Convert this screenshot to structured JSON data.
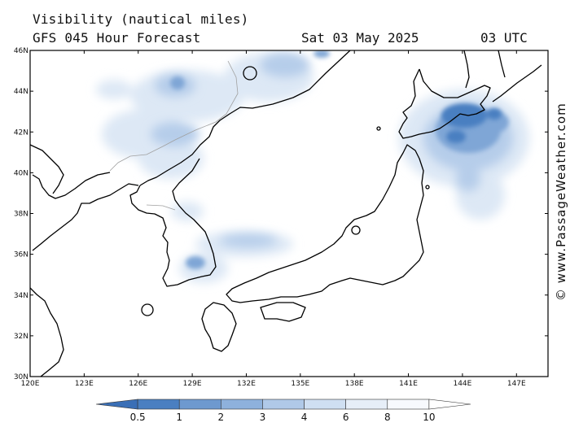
{
  "header": {
    "title": "Visibility (nautical miles)",
    "subtitle": "GFS 045 Hour Forecast",
    "date": "Sat 03 May 2025",
    "time": "03 UTC"
  },
  "axes": {
    "lat_labels": [
      "46N",
      "44N",
      "42N",
      "40N",
      "38N",
      "36N",
      "34N",
      "32N",
      "30N"
    ],
    "lon_labels": [
      "120E",
      "123E",
      "126E",
      "129E",
      "132E",
      "135E",
      "138E",
      "141E",
      "144E",
      "147E"
    ]
  },
  "legend": {
    "labels": [
      "0.5",
      "1",
      "2",
      "3",
      "4",
      "6",
      "8",
      "10"
    ],
    "colors": [
      "#3a6fb6",
      "#4a7fc1",
      "#6e99cf",
      "#8eb1dc",
      "#b0c9e8",
      "#cfdff2",
      "#e6eef8",
      "#f7f9fd"
    ]
  },
  "credit": "© www.PassageWeather.com"
}
